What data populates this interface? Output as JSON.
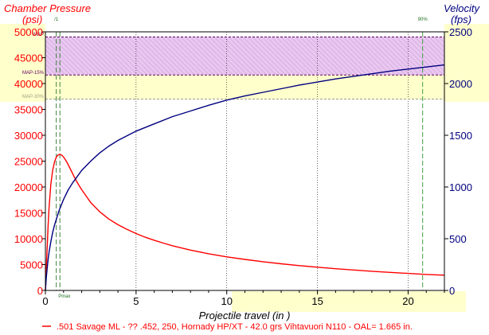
{
  "chart_data": {
    "type": "line",
    "left_axis": {
      "title_line1": "Chamber Pressure",
      "title_line2": "(psi)",
      "color": "#ff0000",
      "range": [
        0,
        50000
      ],
      "ticks": [
        0,
        5000,
        10000,
        15000,
        20000,
        25000,
        30000,
        35000,
        40000,
        45000,
        50000
      ],
      "tick_labels": [
        "0",
        "5000",
        "10000",
        "15000",
        "20000",
        "25000",
        "30000",
        "35000",
        "40000",
        "45000",
        "50000"
      ]
    },
    "right_axis": {
      "title_line1": "Velocity",
      "title_line2": "(fps)",
      "color": "#00007f",
      "range": [
        0,
        2500
      ],
      "ticks": [
        0,
        500,
        1000,
        1500,
        2000,
        2500
      ],
      "tick_labels": [
        "0",
        "500",
        "1000",
        "1500",
        "2000",
        "2500"
      ]
    },
    "x_axis": {
      "label": "Projectile travel (in )",
      "range": [
        0,
        22
      ],
      "ticks": [
        0,
        5,
        10,
        15,
        20
      ],
      "tick_labels": [
        "0",
        "5",
        "10",
        "15",
        "20"
      ]
    },
    "reference_lines": [
      {
        "label": "MAP",
        "value": 49000
      },
      {
        "label": "MAP-15%",
        "value": 41650
      },
      {
        "label": "MAP-30%",
        "value": 37000
      }
    ],
    "markers": [
      {
        "label": "Pmax",
        "x": 0.8
      },
      {
        "label": "/1",
        "x": 0.6
      },
      {
        "label": "90%",
        "x": 20.8
      }
    ],
    "series": [
      {
        "name": "Pressure",
        "color": "#ff0000",
        "axis": "left",
        "x": [
          0,
          0.05,
          0.1,
          0.15,
          0.2,
          0.3,
          0.4,
          0.5,
          0.6,
          0.7,
          0.8,
          0.9,
          1.0,
          1.1,
          1.2,
          1.4,
          1.6,
          1.8,
          2,
          2.5,
          3,
          3.5,
          4,
          4.5,
          5,
          5.5,
          6,
          6.5,
          7,
          8,
          9,
          10,
          11,
          12,
          13,
          14,
          15,
          16,
          17,
          18,
          19,
          20,
          21,
          22
        ],
        "y": [
          0,
          4000,
          8500,
          12500,
          16000,
          20500,
          23200,
          24800,
          25800,
          26200,
          26300,
          26150,
          25800,
          25300,
          24700,
          23300,
          21900,
          20600,
          19500,
          17000,
          15200,
          13800,
          12700,
          11800,
          11000,
          10300,
          9700,
          9150,
          8650,
          7800,
          7100,
          6500,
          6000,
          5550,
          5150,
          4800,
          4500,
          4200,
          3950,
          3700,
          3500,
          3300,
          3100,
          2950
        ]
      },
      {
        "name": "Velocity",
        "color": "#00007f",
        "axis": "right",
        "x": [
          0,
          0.05,
          0.1,
          0.15,
          0.2,
          0.3,
          0.4,
          0.5,
          0.75,
          1,
          1.25,
          1.5,
          2,
          2.5,
          3,
          3.5,
          4,
          5,
          6,
          7,
          8,
          9,
          10,
          11,
          12,
          13,
          14,
          15,
          16,
          17,
          18,
          19,
          20,
          21,
          22
        ],
        "y": [
          0,
          120,
          220,
          300,
          370,
          470,
          560,
          630,
          770,
          880,
          970,
          1040,
          1160,
          1250,
          1330,
          1395,
          1450,
          1540,
          1610,
          1680,
          1735,
          1790,
          1840,
          1880,
          1915,
          1950,
          1985,
          2015,
          2045,
          2070,
          2095,
          2120,
          2140,
          2160,
          2180
        ]
      }
    ],
    "legend": {
      "text": ".501 Savage ML - ?? .452, 250, Hornady HP/XT - 42.0 grs Vihtavuori N110 - OAL= 1.665 in.",
      "color": "#ff0000"
    }
  }
}
